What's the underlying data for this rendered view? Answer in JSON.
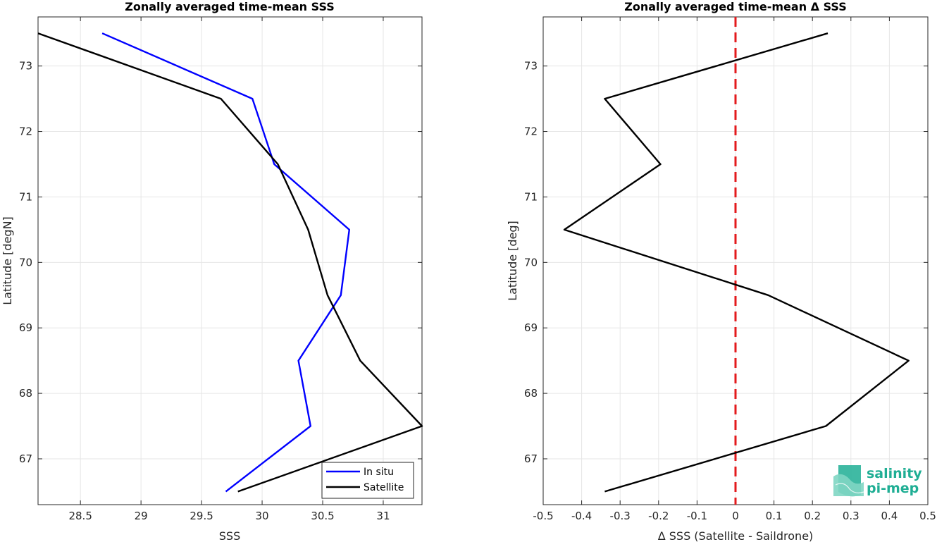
{
  "chart_data": [
    {
      "type": "line",
      "title": "Zonally averaged time-mean SSS",
      "xlabel": "SSS",
      "ylabel": "Latitude [degN]",
      "xlim": [
        28.15,
        31.32
      ],
      "ylim": [
        66.3,
        73.75
      ],
      "xticks": [
        28.5,
        29,
        29.5,
        30,
        30.5,
        31
      ],
      "xtick_labels": [
        "28.5",
        "29",
        "29.5",
        "30",
        "30.5",
        "31"
      ],
      "yticks": [
        67,
        68,
        69,
        70,
        71,
        72,
        73
      ],
      "ytick_labels": [
        "67",
        "68",
        "69",
        "70",
        "71",
        "72",
        "73"
      ],
      "grid": true,
      "legend_location": "bottom-right",
      "series": [
        {
          "name": "In situ",
          "color": "#0000ff",
          "x": [
            29.7,
            30.4,
            30.3,
            30.65,
            30.72,
            30.1,
            29.92,
            28.68
          ],
          "y": [
            66.5,
            67.5,
            68.5,
            69.5,
            70.5,
            71.5,
            72.5,
            73.5
          ]
        },
        {
          "name": "Satellite",
          "color": "#000000",
          "x": [
            29.8,
            31.32,
            30.81,
            30.54,
            30.38,
            30.13,
            29.66,
            28.15
          ],
          "y": [
            66.5,
            67.5,
            68.5,
            69.5,
            70.5,
            71.5,
            72.5,
            73.5
          ]
        }
      ]
    },
    {
      "type": "line",
      "title": "Zonally averaged time-mean Δ SSS",
      "xlabel": "Δ SSS (Satellite - Saildrone)",
      "ylabel": "Latitude [deg]",
      "xlim": [
        -0.5,
        0.5
      ],
      "ylim": [
        66.3,
        73.75
      ],
      "xticks": [
        -0.5,
        -0.4,
        -0.3,
        -0.2,
        -0.1,
        0,
        0.1,
        0.2,
        0.3,
        0.4,
        0.5
      ],
      "xtick_labels": [
        "-0.5",
        "-0.4",
        "-0.3",
        "-0.2",
        "-0.1",
        "0",
        "0.1",
        "0.2",
        "0.3",
        "0.4",
        "0.5"
      ],
      "yticks": [
        67,
        68,
        69,
        70,
        71,
        72,
        73
      ],
      "ytick_labels": [
        "67",
        "68",
        "69",
        "70",
        "71",
        "72",
        "73"
      ],
      "grid": true,
      "reference_line": {
        "x": 0,
        "color": "#e31a1c",
        "style": "dashed"
      },
      "series": [
        {
          "color": "#000000",
          "x": [
            -0.34,
            0.235,
            0.45,
            0.085,
            -0.445,
            -0.195,
            -0.34,
            0.24
          ],
          "y": [
            66.5,
            67.5,
            68.5,
            69.5,
            70.5,
            71.5,
            72.5,
            73.5
          ]
        }
      ]
    }
  ],
  "logo": {
    "line1": "salinity",
    "line2": "pi-mep",
    "color": "#1fae94"
  }
}
